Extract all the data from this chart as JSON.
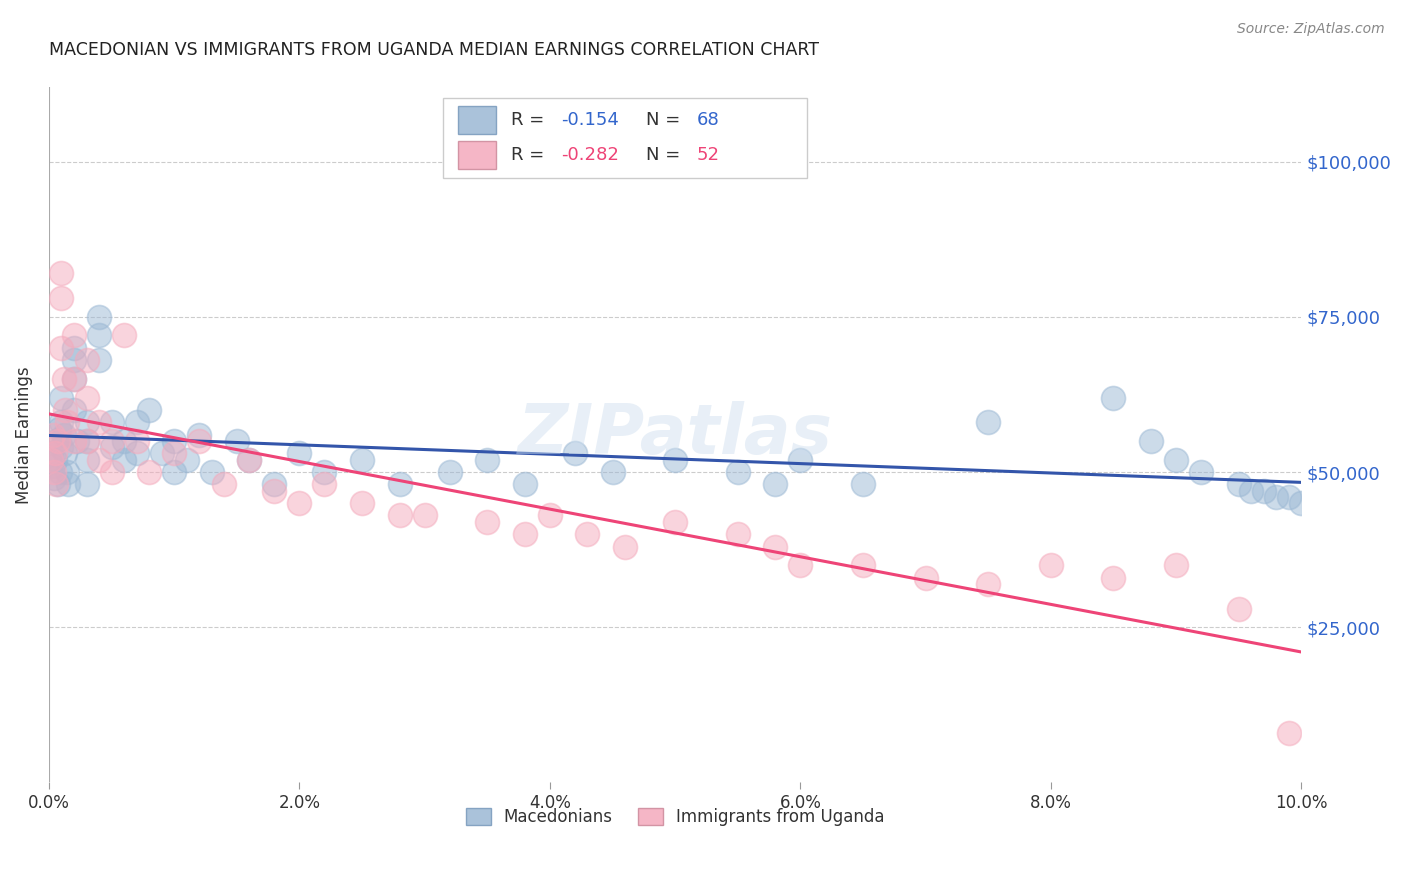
{
  "title": "MACEDONIAN VS IMMIGRANTS FROM UGANDA MEDIAN EARNINGS CORRELATION CHART",
  "source": "Source: ZipAtlas.com",
  "ylabel": "Median Earnings",
  "watermark": "ZIPatlas",
  "legend": {
    "blue_r": "-0.154",
    "blue_n": "68",
    "pink_r": "-0.282",
    "pink_n": "52"
  },
  "blue_color": "#9BB8D4",
  "pink_color": "#F4AABC",
  "blue_line_color": "#3355AA",
  "pink_line_color": "#EE4477",
  "ytick_labels": [
    "$25,000",
    "$50,000",
    "$75,000",
    "$100,000"
  ],
  "ytick_values": [
    25000,
    50000,
    75000,
    100000
  ],
  "xlim": [
    0.0,
    0.1
  ],
  "ylim": [
    0,
    112000
  ],
  "blue_points_x": [
    0.0002,
    0.0003,
    0.0004,
    0.0005,
    0.0006,
    0.0007,
    0.0008,
    0.0009,
    0.001,
    0.001,
    0.001,
    0.0012,
    0.0013,
    0.0014,
    0.0015,
    0.002,
    0.002,
    0.002,
    0.002,
    0.0022,
    0.003,
    0.003,
    0.003,
    0.003,
    0.004,
    0.004,
    0.004,
    0.005,
    0.005,
    0.006,
    0.006,
    0.007,
    0.007,
    0.008,
    0.009,
    0.01,
    0.01,
    0.011,
    0.012,
    0.013,
    0.015,
    0.016,
    0.018,
    0.02,
    0.022,
    0.025,
    0.028,
    0.032,
    0.035,
    0.038,
    0.042,
    0.045,
    0.05,
    0.055,
    0.058,
    0.06,
    0.065,
    0.075,
    0.085,
    0.088,
    0.09,
    0.092,
    0.095,
    0.096,
    0.097,
    0.098,
    0.099,
    0.1
  ],
  "blue_points_y": [
    53000,
    51000,
    49000,
    52000,
    55000,
    48000,
    57000,
    50000,
    62000,
    58000,
    54000,
    56000,
    53000,
    50000,
    48000,
    65000,
    70000,
    68000,
    60000,
    55000,
    55000,
    58000,
    52000,
    48000,
    75000,
    72000,
    68000,
    58000,
    54000,
    55000,
    52000,
    58000,
    53000,
    60000,
    53000,
    55000,
    50000,
    52000,
    56000,
    50000,
    55000,
    52000,
    48000,
    53000,
    50000,
    52000,
    48000,
    50000,
    52000,
    48000,
    53000,
    50000,
    52000,
    50000,
    48000,
    52000,
    48000,
    58000,
    62000,
    55000,
    52000,
    50000,
    48000,
    47000,
    47000,
    46000,
    46000,
    45000
  ],
  "pink_points_x": [
    0.0002,
    0.0003,
    0.0004,
    0.0005,
    0.0006,
    0.0007,
    0.001,
    0.001,
    0.001,
    0.0012,
    0.0013,
    0.0014,
    0.002,
    0.002,
    0.002,
    0.003,
    0.003,
    0.003,
    0.004,
    0.004,
    0.005,
    0.005,
    0.006,
    0.007,
    0.008,
    0.01,
    0.012,
    0.014,
    0.016,
    0.018,
    0.02,
    0.022,
    0.025,
    0.028,
    0.03,
    0.035,
    0.038,
    0.04,
    0.043,
    0.046,
    0.05,
    0.055,
    0.058,
    0.06,
    0.065,
    0.07,
    0.075,
    0.08,
    0.085,
    0.09,
    0.095,
    0.099
  ],
  "pink_points_y": [
    52000,
    56000,
    50000,
    53000,
    48000,
    55000,
    82000,
    78000,
    70000,
    65000,
    60000,
    58000,
    72000,
    65000,
    55000,
    68000,
    62000,
    55000,
    58000,
    52000,
    55000,
    50000,
    72000,
    55000,
    50000,
    53000,
    55000,
    48000,
    52000,
    47000,
    45000,
    48000,
    45000,
    43000,
    43000,
    42000,
    40000,
    43000,
    40000,
    38000,
    42000,
    40000,
    38000,
    35000,
    35000,
    33000,
    32000,
    35000,
    33000,
    35000,
    28000,
    8000
  ]
}
